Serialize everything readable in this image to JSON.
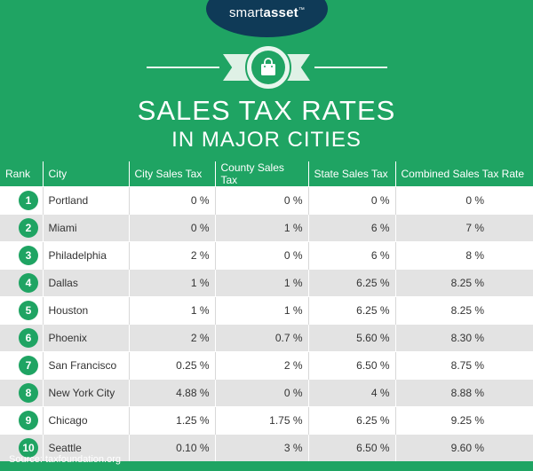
{
  "brand": {
    "pre": "smart",
    "bold": "asset",
    "tm": "™"
  },
  "colors": {
    "background": "#1fa463",
    "brand_oval": "#0f3a57",
    "row_alt": "#e3e3e3"
  },
  "icon": "shopping-bag-icon",
  "title": {
    "line1": "SALES TAX RATES",
    "line2": "IN MAJOR CITIES"
  },
  "table": {
    "headers": [
      "Rank",
      "City",
      "City Sales Tax",
      "County Sales Tax",
      "State Sales Tax",
      "Combined Sales Tax Rate"
    ],
    "rows": [
      {
        "rank": "1",
        "city": "Portland",
        "city_tax": "0 %",
        "county_tax": "0 %",
        "state_tax": "0 %",
        "combined": "0 %"
      },
      {
        "rank": "2",
        "city": "Miami",
        "city_tax": "0 %",
        "county_tax": "1 %",
        "state_tax": "6 %",
        "combined": "7 %"
      },
      {
        "rank": "3",
        "city": "Philadelphia",
        "city_tax": "2 %",
        "county_tax": "0 %",
        "state_tax": "6 %",
        "combined": "8 %"
      },
      {
        "rank": "4",
        "city": "Dallas",
        "city_tax": "1 %",
        "county_tax": "1 %",
        "state_tax": "6.25 %",
        "combined": "8.25 %"
      },
      {
        "rank": "5",
        "city": "Houston",
        "city_tax": "1 %",
        "county_tax": "1 %",
        "state_tax": "6.25 %",
        "combined": "8.25 %"
      },
      {
        "rank": "6",
        "city": "Phoenix",
        "city_tax": "2 %",
        "county_tax": "0.7 %",
        "state_tax": "5.60 %",
        "combined": "8.30 %"
      },
      {
        "rank": "7",
        "city": "San Francisco",
        "city_tax": "0.25 %",
        "county_tax": "2 %",
        "state_tax": "6.50 %",
        "combined": "8.75 %"
      },
      {
        "rank": "8",
        "city": "New York City",
        "city_tax": "4.88 %",
        "county_tax": "0 %",
        "state_tax": "4 %",
        "combined": "8.88 %"
      },
      {
        "rank": "9",
        "city": "Chicago",
        "city_tax": "1.25 %",
        "county_tax": "1.75 %",
        "state_tax": "6.25 %",
        "combined": "9.25 %"
      },
      {
        "rank": "10",
        "city": "Seattle",
        "city_tax": "0.10 %",
        "county_tax": "3 %",
        "state_tax": "6.50 %",
        "combined": "9.60 %"
      }
    ]
  },
  "source": "Source: taxfoundation.org"
}
